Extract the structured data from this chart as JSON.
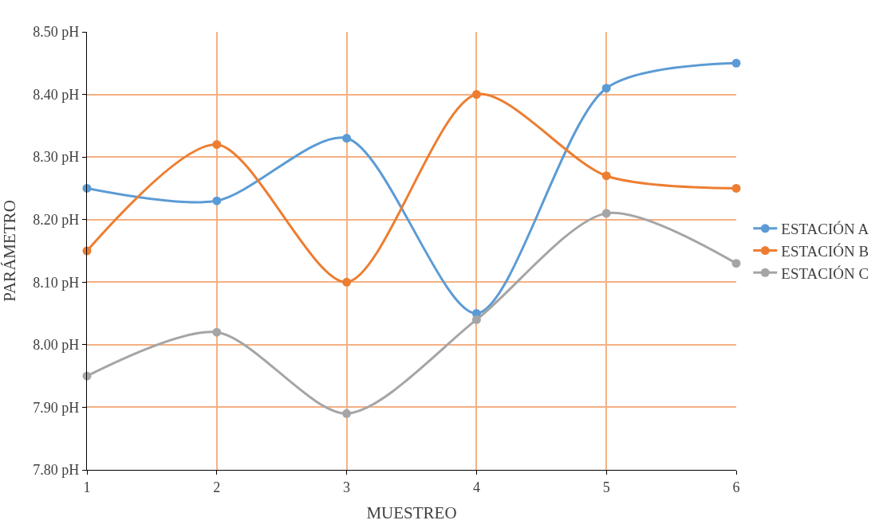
{
  "chart_data": {
    "type": "line",
    "xlabel": "MUESTREO",
    "ylabel": "PARÁMETRO",
    "x": [
      1,
      2,
      3,
      4,
      5,
      6
    ],
    "series": [
      {
        "name": "ESTACIÓN A",
        "color": "#5b9bd5",
        "values": [
          8.25,
          8.23,
          8.33,
          8.05,
          8.41,
          8.45
        ]
      },
      {
        "name": "ESTACIÓN B",
        "color": "#ed7d31",
        "values": [
          8.15,
          8.32,
          8.1,
          8.4,
          8.27,
          8.25
        ]
      },
      {
        "name": "ESTACIÓN C",
        "color": "#a5a5a5",
        "values": [
          7.95,
          8.02,
          7.89,
          8.04,
          8.21,
          8.13
        ]
      }
    ],
    "xlim": [
      1,
      6
    ],
    "xticks": [
      1,
      2,
      3,
      4,
      5,
      6
    ],
    "ylim": [
      7.8,
      8.5
    ],
    "yticks": [
      {
        "value": 7.8,
        "label": "7.80 pH"
      },
      {
        "value": 7.9,
        "label": "7.90 pH"
      },
      {
        "value": 8.0,
        "label": "8.00 pH"
      },
      {
        "value": 8.1,
        "label": "8.10 pH"
      },
      {
        "value": 8.2,
        "label": "8.20 pH"
      },
      {
        "value": 8.3,
        "label": "8.30 pH"
      },
      {
        "value": 8.4,
        "label": "8.40 pH"
      },
      {
        "value": 8.5,
        "label": "8.50 pH"
      }
    ],
    "grid": true,
    "legend": "right",
    "marker": "circle",
    "line_style": "solid"
  }
}
